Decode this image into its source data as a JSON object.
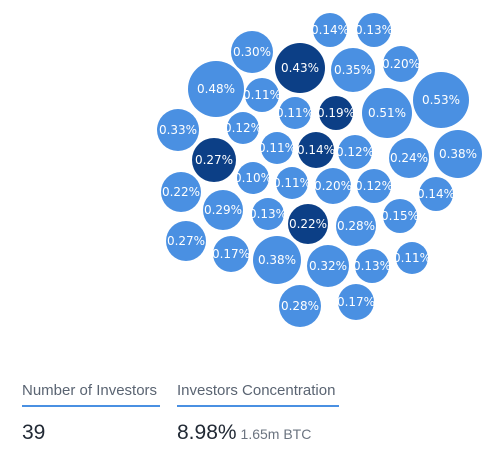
{
  "bubbles": [
    {
      "label": "0.14%",
      "value": 0.14,
      "shade": "light"
    },
    {
      "label": "0.13%",
      "value": 0.13,
      "shade": "light"
    },
    {
      "label": "0.30%",
      "value": 0.3,
      "shade": "light"
    },
    {
      "label": "0.43%",
      "value": 0.43,
      "shade": "dark"
    },
    {
      "label": "0.35%",
      "value": 0.35,
      "shade": "light"
    },
    {
      "label": "0.20%",
      "value": 0.2,
      "shade": "light"
    },
    {
      "label": "0.48%",
      "value": 0.48,
      "shade": "light"
    },
    {
      "label": "0.11%",
      "value": 0.11,
      "shade": "light"
    },
    {
      "label": "0.53%",
      "value": 0.53,
      "shade": "light"
    },
    {
      "label": "0.11%",
      "value": 0.11,
      "shade": "light"
    },
    {
      "label": "0.19%",
      "value": 0.19,
      "shade": "dark"
    },
    {
      "label": "0.51%",
      "value": 0.51,
      "shade": "light"
    },
    {
      "label": "0.33%",
      "value": 0.33,
      "shade": "light"
    },
    {
      "label": "0.12%",
      "value": 0.12,
      "shade": "light"
    },
    {
      "label": "0.38%",
      "value": 0.38,
      "shade": "light"
    },
    {
      "label": "0.11%",
      "value": 0.11,
      "shade": "light"
    },
    {
      "label": "0.14%",
      "value": 0.14,
      "shade": "dark"
    },
    {
      "label": "0.12%",
      "value": 0.12,
      "shade": "light"
    },
    {
      "label": "0.24%",
      "value": 0.24,
      "shade": "light"
    },
    {
      "label": "0.27%",
      "value": 0.27,
      "shade": "dark"
    },
    {
      "label": "0.10%",
      "value": 0.1,
      "shade": "light"
    },
    {
      "label": "0.11%",
      "value": 0.11,
      "shade": "light"
    },
    {
      "label": "0.20%",
      "value": 0.2,
      "shade": "light"
    },
    {
      "label": "0.12%",
      "value": 0.12,
      "shade": "light"
    },
    {
      "label": "0.14%",
      "value": 0.14,
      "shade": "light"
    },
    {
      "label": "0.22%",
      "value": 0.22,
      "shade": "light"
    },
    {
      "label": "0.29%",
      "value": 0.29,
      "shade": "light"
    },
    {
      "label": "0.13%",
      "value": 0.13,
      "shade": "light"
    },
    {
      "label": "0.22%",
      "value": 0.22,
      "shade": "dark"
    },
    {
      "label": "0.28%",
      "value": 0.28,
      "shade": "light"
    },
    {
      "label": "0.15%",
      "value": 0.15,
      "shade": "light"
    },
    {
      "label": "0.27%",
      "value": 0.27,
      "shade": "light"
    },
    {
      "label": "0.17%",
      "value": 0.17,
      "shade": "light"
    },
    {
      "label": "0.38%",
      "value": 0.38,
      "shade": "light"
    },
    {
      "label": "0.32%",
      "value": 0.32,
      "shade": "light"
    },
    {
      "label": "0.13%",
      "value": 0.13,
      "shade": "light"
    },
    {
      "label": "0.11%",
      "value": 0.11,
      "shade": "light"
    },
    {
      "label": "0.28%",
      "value": 0.28,
      "shade": "light"
    },
    {
      "label": "0.17%",
      "value": 0.17,
      "shade": "light"
    }
  ],
  "colors": {
    "bubble_light": "#4a90e2",
    "bubble_dark": "#0c3f86",
    "underline": "#4a90e2"
  },
  "stats": {
    "investors": {
      "label": "Number of Investors",
      "value": "39"
    },
    "concentration": {
      "label": "Investors Concentration",
      "value": "8.98%",
      "sub": "1.65m BTC"
    }
  }
}
